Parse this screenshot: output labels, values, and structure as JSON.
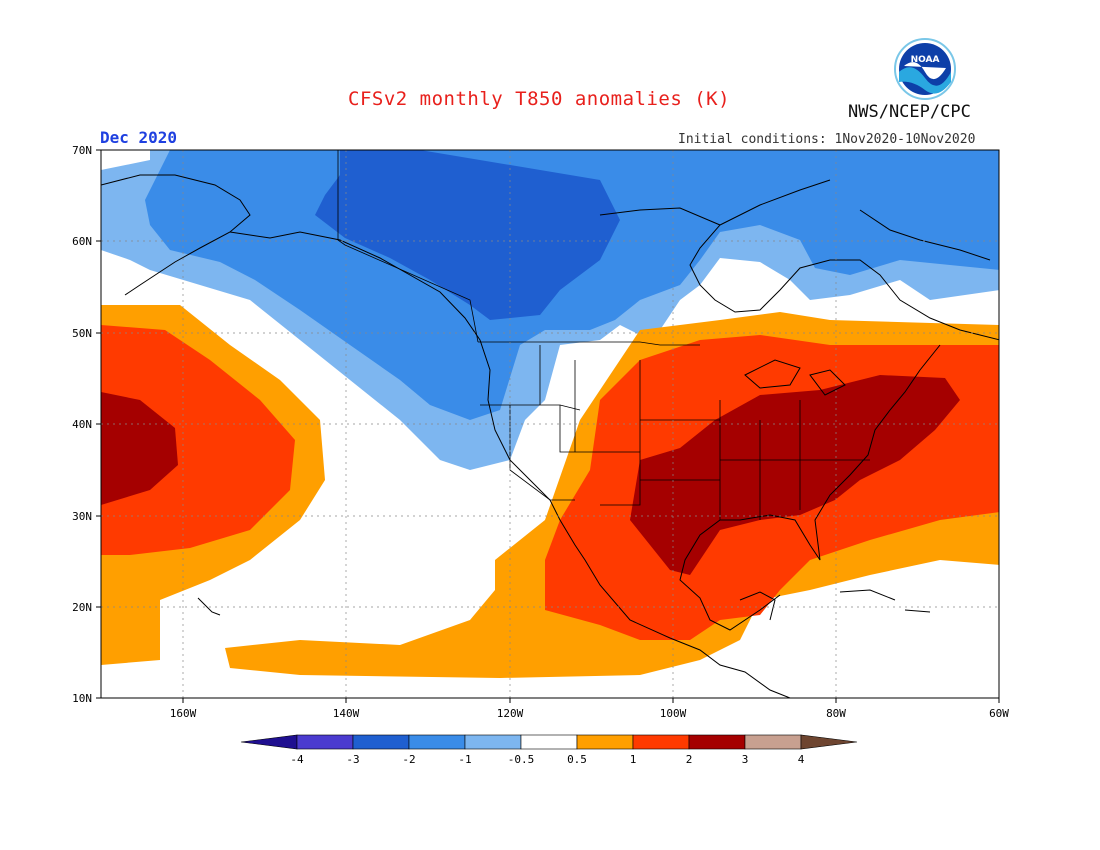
{
  "header": {
    "title": "CFSv2 monthly T850 anomalies (K)",
    "agency": "NWS/NCEP/CPC",
    "month": "Dec 2020",
    "init_conditions": "Initial conditions: 1Nov2020-10Nov2020"
  },
  "logo": {
    "text": "NOAA",
    "icon": "noaa-logo-icon"
  },
  "map": {
    "projection": "lat-lon",
    "lon_range": [
      -170,
      -60
    ],
    "lat_range": [
      10,
      70
    ],
    "lat_labels": [
      "10N",
      "20N",
      "30N",
      "40N",
      "50N",
      "60N",
      "70N"
    ],
    "lon_labels": [
      "160W",
      "140W",
      "120W",
      "100W",
      "80W",
      "60W"
    ],
    "grid": "dotted",
    "units": "K"
  },
  "colorbar": {
    "levels": [
      "-4",
      "-3",
      "-2",
      "-1",
      "-0.5",
      "0.5",
      "1",
      "2",
      "3",
      "4"
    ],
    "colors": [
      "#1f0f90",
      "#4b3bcf",
      "#1f5fd0",
      "#3a8ce8",
      "#7db6f0",
      "#ffffff",
      "#ff9f00",
      "#ff3a00",
      "#a50000",
      "#c8a090",
      "#6e4530"
    ]
  },
  "colors": {
    "title": "#e8201c",
    "month": "#1f40e0"
  }
}
